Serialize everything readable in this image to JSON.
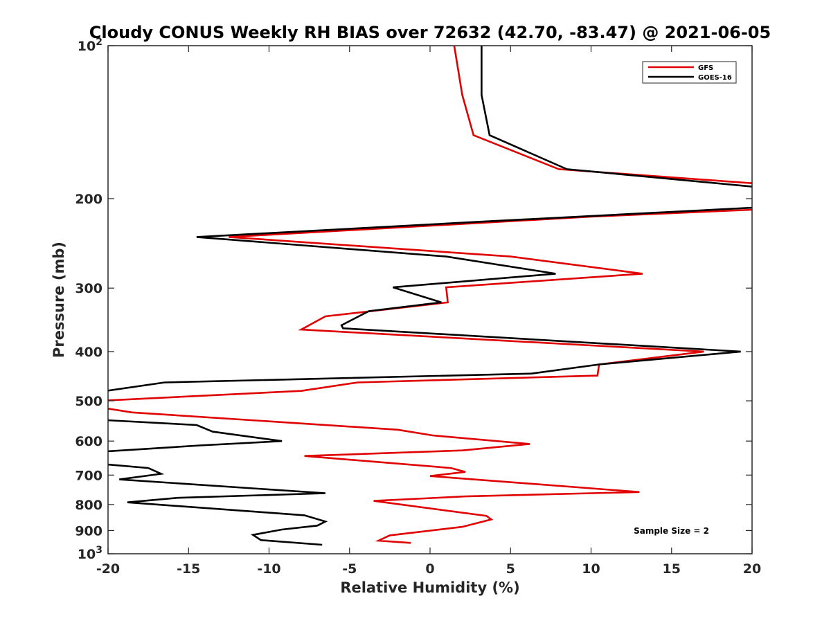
{
  "chart_data": {
    "type": "line",
    "title": "Cloudy CONUS Weekly RH BIAS over 72632 (42.70, -83.47) @ 2021-06-05",
    "xlabel": "Relative Humidity (%)",
    "ylabel": "Pressure (mb)",
    "xlim": [
      -20,
      20
    ],
    "ylim": [
      100,
      1000
    ],
    "y_scale": "log",
    "y_reversed": true,
    "x_ticks": [
      "-20",
      "-15",
      "-10",
      "-5",
      "0",
      "5",
      "10",
      "15",
      "20"
    ],
    "y_ticks": [
      {
        "base": "10",
        "exp": "2"
      },
      {
        "base": "200",
        "exp": ""
      },
      {
        "base": "300",
        "exp": ""
      },
      {
        "base": "400",
        "exp": ""
      },
      {
        "base": "500",
        "exp": ""
      },
      {
        "base": "600",
        "exp": ""
      },
      {
        "base": "700",
        "exp": ""
      },
      {
        "base": "800",
        "exp": ""
      },
      {
        "base": "900",
        "exp": ""
      },
      {
        "base": "10",
        "exp": "3"
      }
    ],
    "grid": false,
    "legend_position": "top-right",
    "annotation": "Sample Size = 2",
    "series": [
      {
        "name": "GFS",
        "color": "#e00000",
        "points": [
          [
            1.5,
            100
          ],
          [
            2.0,
            125
          ],
          [
            2.7,
            150
          ],
          [
            8.0,
            175
          ],
          [
            20.5,
            187
          ],
          [
            20.5,
            210
          ],
          [
            10.0,
            217
          ],
          [
            -12.5,
            238
          ],
          [
            5.0,
            260
          ],
          [
            13.2,
            281
          ],
          [
            1.0,
            299
          ],
          [
            1.1,
            320
          ],
          [
            -6.5,
            341
          ],
          [
            -8.0,
            362
          ],
          [
            17.0,
            400
          ],
          [
            10.5,
            424
          ],
          [
            10.4,
            446
          ],
          [
            -4.5,
            460
          ],
          [
            -8.0,
            478
          ],
          [
            -20.5,
            500
          ],
          [
            -20.5,
            515
          ],
          [
            -18.5,
            527
          ],
          [
            -2.0,
            570
          ],
          [
            0.2,
            585
          ],
          [
            6.2,
            608
          ],
          [
            2.0,
            626
          ],
          [
            -7.8,
            642
          ],
          [
            1.3,
            678
          ],
          [
            2.2,
            690
          ],
          [
            0.0,
            703
          ],
          [
            13.0,
            756
          ],
          [
            2.2,
            771
          ],
          [
            -3.5,
            787
          ],
          [
            3.5,
            842
          ],
          [
            3.8,
            856
          ],
          [
            2.0,
            885
          ],
          [
            -2.5,
            920
          ],
          [
            -3.2,
            942
          ],
          [
            -1.2,
            952
          ]
        ]
      },
      {
        "name": "GOES-16",
        "color": "#000000",
        "points": [
          [
            3.2,
            100
          ],
          [
            3.2,
            125
          ],
          [
            3.7,
            150
          ],
          [
            8.5,
            175
          ],
          [
            20.5,
            190
          ],
          [
            20.5,
            208
          ],
          [
            3.2,
            222
          ],
          [
            -14.5,
            238
          ],
          [
            1.0,
            260
          ],
          [
            7.8,
            281
          ],
          [
            -2.3,
            299
          ],
          [
            0.7,
            320
          ],
          [
            -3.8,
            333
          ],
          [
            -5.5,
            355
          ],
          [
            -5.4,
            360
          ],
          [
            19.3,
            400
          ],
          [
            10.5,
            424
          ],
          [
            6.3,
            442
          ],
          [
            -16.5,
            460
          ],
          [
            -20.5,
            480
          ],
          [
            -20.5,
            545
          ],
          [
            -14.5,
            558
          ],
          [
            -13.5,
            575
          ],
          [
            -9.2,
            600
          ],
          [
            -14.3,
            612
          ],
          [
            -20.5,
            630
          ],
          [
            -20.5,
            665
          ],
          [
            -17.5,
            678
          ],
          [
            -16.7,
            696
          ],
          [
            -19.3,
            714
          ],
          [
            -6.5,
            760
          ],
          [
            -15.7,
            776
          ],
          [
            -18.8,
            792
          ],
          [
            -7.8,
            840
          ],
          [
            -6.5,
            864
          ],
          [
            -7.0,
            880
          ],
          [
            -9.2,
            896
          ],
          [
            -11.0,
            918
          ],
          [
            -10.5,
            940
          ],
          [
            -6.7,
            960
          ]
        ]
      }
    ]
  }
}
